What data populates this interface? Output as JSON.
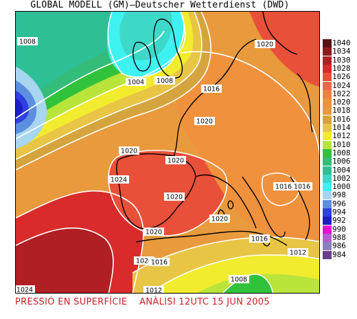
{
  "title": "GLOBAL MODELL (GM)—Deutscher Wetterdienst (DWD)",
  "caption": "PRESSIÓ EN SUPERFÍCIE    ANÀLISI 12UTC 15 JUN 2005",
  "legend": {
    "unit_levels": [
      {
        "label": "1040",
        "color": "#5a0f14"
      },
      {
        "label": "1034",
        "color": "#8a1b1e"
      },
      {
        "label": "1030",
        "color": "#b01f24"
      },
      {
        "label": "1028",
        "color": "#d92b2b"
      },
      {
        "label": "1026",
        "color": "#e8503a"
      },
      {
        "label": "1024",
        "color": "#f0684a"
      },
      {
        "label": "1022",
        "color": "#f27f45"
      },
      {
        "label": "1020",
        "color": "#f0913e"
      },
      {
        "label": "1018",
        "color": "#e89a3c"
      },
      {
        "label": "1016",
        "color": "#d5a43e"
      },
      {
        "label": "1014",
        "color": "#e9c545"
      },
      {
        "label": "1012",
        "color": "#f2ec2e"
      },
      {
        "label": "1010",
        "color": "#b9e43a"
      },
      {
        "label": "1008",
        "color": "#31c23c"
      },
      {
        "label": "1006",
        "color": "#33bd79"
      },
      {
        "label": "1004",
        "color": "#2fbf95"
      },
      {
        "label": "1002",
        "color": "#3ed8c8"
      },
      {
        "label": "1000",
        "color": "#3ff2f2"
      },
      {
        "label": "998",
        "color": "#a8d6f0"
      },
      {
        "label": "996",
        "color": "#5c8fe0"
      },
      {
        "label": "994",
        "color": "#2f3fe0"
      },
      {
        "label": "992",
        "color": "#1c1ec8"
      },
      {
        "label": "990",
        "color": "#e60fd7"
      },
      {
        "label": "988",
        "color": "#b45fcf"
      },
      {
        "label": "986",
        "color": "#8c7fbf"
      },
      {
        "label": "984",
        "color": "#6a3f8a"
      }
    ]
  },
  "isobar_labels": [
    {
      "text": "1008"
    },
    {
      "text": "1004"
    },
    {
      "text": "1008"
    },
    {
      "text": "1016"
    },
    {
      "text": "1020"
    },
    {
      "text": "1020"
    },
    {
      "text": "1020"
    },
    {
      "text": "1020"
    },
    {
      "text": "1024"
    },
    {
      "text": "1020"
    },
    {
      "text": "1016"
    },
    {
      "text": "1016"
    },
    {
      "text": "1020"
    },
    {
      "text": "1020"
    },
    {
      "text": "1020"
    },
    {
      "text": "1016"
    },
    {
      "text": "1016"
    },
    {
      "text": "1012"
    },
    {
      "text": "1008"
    },
    {
      "text": "1024"
    },
    {
      "text": "1012"
    }
  ]
}
